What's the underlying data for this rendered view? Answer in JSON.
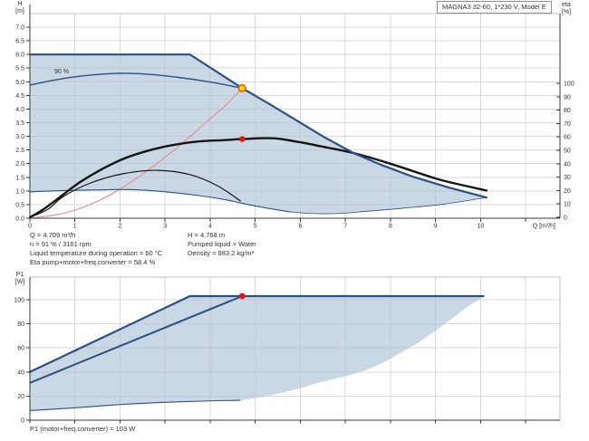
{
  "colors": {
    "envelope_fill": "rgba(173,193,215,0.65)",
    "curve_blue": "#2a5183",
    "curve_black": "#141414",
    "system_red": "#e08d8d",
    "dot_red": "#e81309",
    "dot_yellow_fill": "#ffd400",
    "dot_yellow_ring": "#dd5f00",
    "grid": "#dadada",
    "frame": "#c0c0c0",
    "axis": "#3a3a3a",
    "text": "#333333"
  },
  "info_panel": {
    "col1": [
      "Q = 4.709 m³/h",
      "n = 91 % / 3161 rpm",
      "Liquid temperature during operation = 60 °C",
      "Eta pump+motor+freq.converter = 58.4 %"
    ],
    "col2": [
      "H = 4.768 m",
      "Pumped liquid = Water",
      "Density = 983.2 kg/m³"
    ]
  },
  "chart_data": [
    {
      "type": "line",
      "id": "qh-curve-chart",
      "title_box": "MAGNA3 32-60, 1*230 V, Model E",
      "x_axis": {
        "unit": "Q [m³/h]",
        "min": 0,
        "max": 11.7,
        "tick_values": [
          0,
          1,
          2,
          3,
          4,
          5,
          6,
          7,
          8,
          9,
          10,
          11
        ],
        "tick_labels": [
          "0",
          "1",
          "2",
          "3",
          "4",
          "5",
          "6",
          "7",
          "8",
          "9",
          "10",
          ""
        ]
      },
      "y_left": {
        "name": "H",
        "unit": "[m]",
        "min": 0,
        "max": 7.5,
        "tick_values": [
          0,
          0.5,
          1,
          1.5,
          2,
          2.5,
          3,
          3.5,
          4,
          4.5,
          5,
          5.5,
          6,
          6.5,
          7
        ],
        "tick_labels": [
          "0.0",
          "0.5",
          "1.0",
          "1.5",
          "2.0",
          "2.5",
          "3.0",
          "3.5",
          "4.0",
          "4.5",
          "5.0",
          "5.5",
          "6.0",
          "6.5",
          "7.0"
        ],
        "grid_values": [
          0.5,
          1,
          1.5,
          2,
          2.5,
          3,
          3.5,
          4,
          4.5,
          5,
          5.5,
          6,
          6.5,
          7,
          7.5
        ]
      },
      "y_right": {
        "name": "eta",
        "unit": "[%]",
        "min": 0,
        "max": 100,
        "tick_values": [
          0,
          10,
          20,
          30,
          40,
          50,
          60,
          70,
          80,
          90,
          100
        ],
        "tick_labels": [
          "0",
          "10",
          "20",
          "30",
          "40",
          "50",
          "60",
          "70",
          "80",
          "90",
          "100"
        ]
      },
      "curves": [
        {
          "name": "max-speed-envelope",
          "axis": "H",
          "points": [
            [
              0,
              6.0
            ],
            [
              3.55,
              6.0
            ],
            [
              4.709,
              4.768
            ],
            [
              5.3,
              4.2
            ],
            [
              5.87,
              3.63
            ],
            [
              6.5,
              3.0
            ],
            [
              7.18,
              2.39
            ],
            [
              7.8,
              1.95
            ],
            [
              8.5,
              1.52
            ],
            [
              9.3,
              1.12
            ],
            [
              9.7,
              0.95
            ],
            [
              10.13,
              0.76
            ]
          ]
        },
        {
          "name": "speed-90pct-curve",
          "axis": "H",
          "label": "90 %",
          "points": [
            [
              0,
              4.88
            ],
            [
              0.6,
              5.08
            ],
            [
              1.2,
              5.22
            ],
            [
              1.95,
              5.31
            ],
            [
              2.6,
              5.28
            ],
            [
              3.3,
              5.16
            ],
            [
              4.0,
              4.99
            ],
            [
              4.709,
              4.768
            ]
          ]
        },
        {
          "name": "min-speed-curve",
          "axis": "H",
          "points": [
            [
              0,
              0.97
            ],
            [
              0.7,
              1.01
            ],
            [
              1.5,
              1.04
            ],
            [
              2.3,
              1.05
            ],
            [
              3.0,
              0.97
            ],
            [
              3.76,
              0.83
            ],
            [
              4.3,
              0.69
            ],
            [
              4.67,
              0.56
            ],
            [
              5.0,
              0.45
            ],
            [
              5.37,
              0.34
            ],
            [
              5.75,
              0.24
            ]
          ]
        },
        {
          "name": "operating-region-lower-edge",
          "axis": "H",
          "points": [
            [
              5.75,
              0.24
            ],
            [
              6.3,
              0.17
            ],
            [
              6.9,
              0.18
            ],
            [
              7.5,
              0.26
            ],
            [
              8.3,
              0.37
            ],
            [
              9.2,
              0.52
            ],
            [
              10.13,
              0.76
            ]
          ]
        },
        {
          "name": "eta-total-curve",
          "axis": "eta",
          "points": [
            [
              0,
              0
            ],
            [
              0.3,
              6
            ],
            [
              0.7,
              16
            ],
            [
              1.1,
              26
            ],
            [
              1.6,
              36
            ],
            [
              2.1,
              44
            ],
            [
              2.6,
              49.5
            ],
            [
              3.1,
              53.5
            ],
            [
              3.7,
              56.5
            ],
            [
              4.3,
              57.6
            ],
            [
              4.709,
              58.4
            ],
            [
              5.4,
              59
            ],
            [
              6.0,
              56
            ],
            [
              6.6,
              52
            ],
            [
              7.18,
              48
            ],
            [
              8.0,
              40
            ],
            [
              9.0,
              29
            ],
            [
              9.6,
              24
            ],
            [
              10.13,
              20
            ]
          ]
        },
        {
          "name": "eta-duty-speed-curve",
          "axis": "eta",
          "points": [
            [
              0,
              0
            ],
            [
              0.4,
              6
            ],
            [
              0.74,
              15.5
            ],
            [
              1.35,
              25.7
            ],
            [
              2.05,
              32.4
            ],
            [
              2.82,
              35.1
            ],
            [
              3.56,
              31.8
            ],
            [
              4.16,
              23.6
            ],
            [
              4.67,
              12.2
            ]
          ]
        },
        {
          "name": "system-curve",
          "axis": "H",
          "points": [
            [
              0,
              0
            ],
            [
              0.8,
              0.2
            ],
            [
              1.6,
              0.7
            ],
            [
              2.4,
              1.5
            ],
            [
              3.2,
              2.5
            ],
            [
              3.9,
              3.5
            ],
            [
              4.35,
              4.15
            ],
            [
              4.709,
              4.768
            ]
          ]
        }
      ],
      "duty_point": {
        "q": 4.709,
        "h": 4.768
      },
      "duty_eta_point": {
        "q": 4.709,
        "eta": 58.4
      }
    },
    {
      "type": "line",
      "id": "p1-curve-chart",
      "y_axis": {
        "name": "P1",
        "unit": "[W]",
        "min": 0,
        "max": 118,
        "tick_values": [
          0,
          20,
          40,
          60,
          80,
          100
        ],
        "tick_labels": [
          "0",
          "20",
          "40",
          "60",
          "80",
          "100"
        ]
      },
      "x_axis": {
        "min": 0,
        "max": 11.7,
        "tick_values": [
          0,
          1,
          2,
          3,
          4,
          5,
          6,
          7,
          8,
          9,
          10,
          11
        ]
      },
      "curves": [
        {
          "name": "p1-max-line",
          "points": [
            [
              0,
              40
            ],
            [
              3.55,
              103
            ],
            [
              10.06,
              103
            ]
          ]
        },
        {
          "name": "p1-duty-line",
          "points": [
            [
              0,
              31
            ],
            [
              4.709,
              103
            ]
          ]
        },
        {
          "name": "p1-min-line",
          "points": [
            [
              0,
              8
            ],
            [
              0.9,
              10
            ],
            [
              1.8,
              12.5
            ],
            [
              2.8,
              14.5
            ],
            [
              3.8,
              15.8
            ],
            [
              4.67,
              16.5
            ]
          ]
        },
        {
          "name": "p1-region-lower-edge",
          "points": [
            [
              4.67,
              16.5
            ],
            [
              5.1,
              19
            ],
            [
              5.5,
              22
            ],
            [
              6.0,
              26.5
            ],
            [
              6.38,
              31
            ],
            [
              6.9,
              35.5
            ],
            [
              7.42,
              41
            ],
            [
              7.8,
              47
            ],
            [
              8.23,
              56
            ],
            [
              8.6,
              64
            ],
            [
              8.99,
              74
            ],
            [
              9.35,
              84
            ],
            [
              9.74,
              95
            ],
            [
              10.06,
              102.5
            ]
          ]
        }
      ],
      "duty_point": {
        "q": 4.709,
        "p1": 103
      },
      "caption": "P1 (motor+freq.converter) = 103 W"
    }
  ]
}
